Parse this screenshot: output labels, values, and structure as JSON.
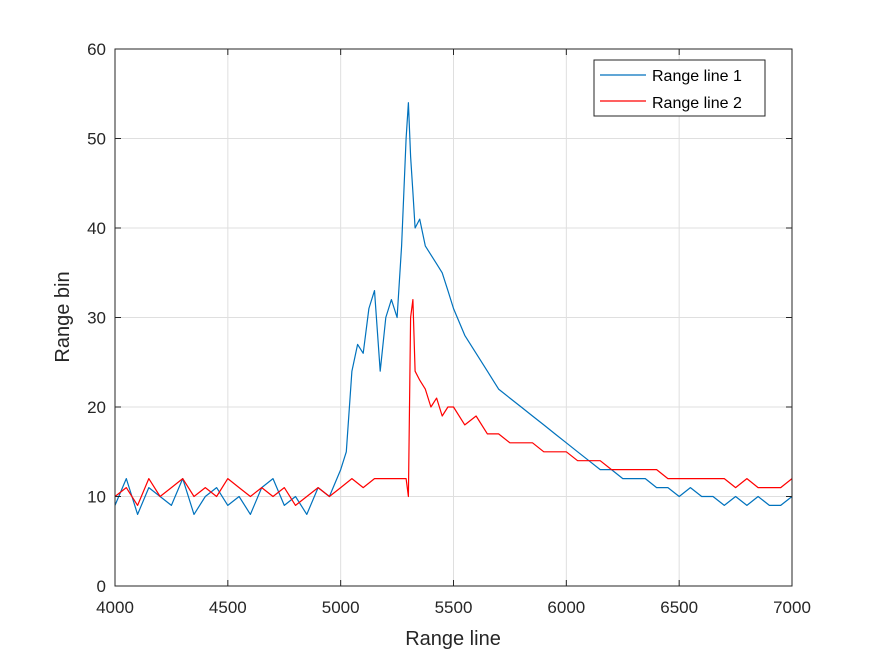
{
  "chart_data": {
    "type": "line",
    "title": "",
    "xlabel": "Range line",
    "ylabel": "Range bin",
    "xlim": [
      4000,
      7000
    ],
    "ylim": [
      0,
      60
    ],
    "xticks": [
      4000,
      4500,
      5000,
      5500,
      6000,
      6500,
      7000
    ],
    "yticks": [
      0,
      10,
      20,
      30,
      40,
      50,
      60
    ],
    "xtick_labels": [
      "4000",
      "4500",
      "5000",
      "5500",
      "6000",
      "6500",
      "7000"
    ],
    "ytick_labels": [
      "0",
      "10",
      "20",
      "30",
      "40",
      "50",
      "60"
    ],
    "grid": true,
    "legend_position": "top-right",
    "series": [
      {
        "name": "Range line 1",
        "color": "#0072bd",
        "x": [
          4000,
          4050,
          4100,
          4150,
          4200,
          4250,
          4300,
          4350,
          4400,
          4450,
          4500,
          4550,
          4600,
          4650,
          4700,
          4750,
          4800,
          4850,
          4900,
          4950,
          5000,
          5025,
          5050,
          5075,
          5100,
          5125,
          5150,
          5175,
          5200,
          5225,
          5250,
          5270,
          5290,
          5300,
          5310,
          5320,
          5330,
          5350,
          5375,
          5400,
          5425,
          5450,
          5475,
          5500,
          5550,
          5600,
          5650,
          5700,
          5750,
          5800,
          5850,
          5900,
          5950,
          6000,
          6050,
          6100,
          6150,
          6200,
          6250,
          6300,
          6350,
          6400,
          6450,
          6500,
          6550,
          6600,
          6650,
          6700,
          6750,
          6800,
          6850,
          6900,
          6950,
          7000
        ],
        "values": [
          9,
          12,
          8,
          11,
          10,
          9,
          12,
          8,
          10,
          11,
          9,
          10,
          8,
          11,
          12,
          9,
          10,
          8,
          11,
          10,
          13,
          15,
          24,
          27,
          26,
          31,
          33,
          24,
          30,
          32,
          30,
          38,
          50,
          54,
          48,
          44,
          40,
          41,
          38,
          37,
          36,
          35,
          33,
          31,
          28,
          26,
          24,
          22,
          21,
          20,
          19,
          18,
          17,
          16,
          15,
          14,
          13,
          13,
          12,
          12,
          12,
          11,
          11,
          10,
          11,
          10,
          10,
          9,
          10,
          9,
          10,
          9,
          9,
          10
        ]
      },
      {
        "name": "Range line 2",
        "color": "#ff0000",
        "x": [
          4000,
          4050,
          4100,
          4150,
          4200,
          4250,
          4300,
          4350,
          4400,
          4450,
          4500,
          4550,
          4600,
          4650,
          4700,
          4750,
          4800,
          4850,
          4900,
          4950,
          5000,
          5050,
          5100,
          5150,
          5200,
          5250,
          5290,
          5300,
          5310,
          5320,
          5330,
          5350,
          5375,
          5400,
          5425,
          5450,
          5475,
          5500,
          5550,
          5600,
          5650,
          5700,
          5750,
          5800,
          5850,
          5900,
          5950,
          6000,
          6050,
          6100,
          6150,
          6200,
          6250,
          6300,
          6350,
          6400,
          6450,
          6500,
          6550,
          6600,
          6650,
          6700,
          6750,
          6800,
          6850,
          6900,
          6950,
          7000
        ],
        "values": [
          10,
          11,
          9,
          12,
          10,
          11,
          12,
          10,
          11,
          10,
          12,
          11,
          10,
          11,
          10,
          11,
          9,
          10,
          11,
          10,
          11,
          12,
          11,
          12,
          12,
          12,
          12,
          10,
          30,
          32,
          24,
          23,
          22,
          20,
          21,
          19,
          20,
          20,
          18,
          19,
          17,
          17,
          16,
          16,
          16,
          15,
          15,
          15,
          14,
          14,
          14,
          13,
          13,
          13,
          13,
          13,
          12,
          12,
          12,
          12,
          12,
          12,
          11,
          12,
          11,
          11,
          11,
          12
        ]
      }
    ]
  }
}
